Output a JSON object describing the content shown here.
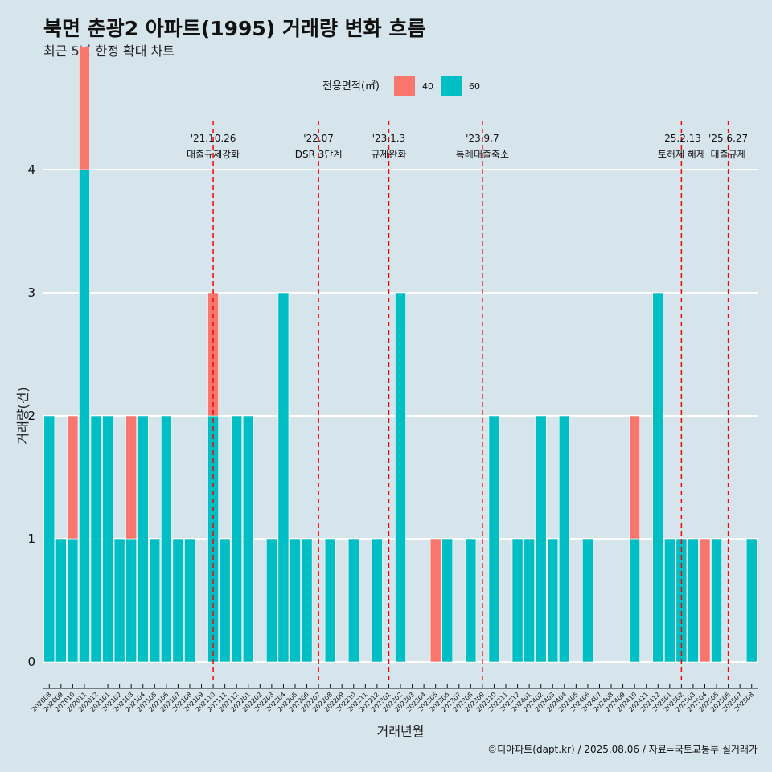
{
  "chart_data": {
    "type": "bar",
    "title": "북면 춘광2 아파트(1995) 거래량 변화 흐름",
    "subtitle": "최근 5년 한정 확대 차트",
    "xlabel": "거래년월",
    "ylabel": "거래량(건)",
    "ylim": [
      0,
      4
    ],
    "yticks": [
      "0",
      "1",
      "2",
      "3",
      "4"
    ],
    "grid": true,
    "legend": {
      "title": "전용면적(㎡)",
      "position": "top",
      "entries": [
        {
          "label": "40",
          "color": "#f8766d"
        },
        {
          "label": "60",
          "color": "#00bfc4"
        }
      ]
    },
    "categories": [
      "202008",
      "202009",
      "202010",
      "202011",
      "202012",
      "202101",
      "202102",
      "202103",
      "202104",
      "202105",
      "202106",
      "202107",
      "202108",
      "202109",
      "202110",
      "202111",
      "202112",
      "202201",
      "202202",
      "202203",
      "202204",
      "202205",
      "202206",
      "202207",
      "202208",
      "202209",
      "202210",
      "202211",
      "202212",
      "202301",
      "202302",
      "202303",
      "202304",
      "202305",
      "202306",
      "202307",
      "202308",
      "202309",
      "202310",
      "202311",
      "202312",
      "202401",
      "202402",
      "202403",
      "202404",
      "202405",
      "202406",
      "202407",
      "202408",
      "202409",
      "202410",
      "202411",
      "202412",
      "202501",
      "202502",
      "202503",
      "202504",
      "202505",
      "202506",
      "202507",
      "202508"
    ],
    "series": [
      {
        "name": "40",
        "color": "#f8766d",
        "values": [
          0,
          0,
          1,
          1,
          0,
          0,
          0,
          1,
          0,
          0,
          0,
          0,
          0,
          0,
          1,
          0,
          0,
          0,
          0,
          0,
          0,
          0,
          0,
          0,
          0,
          0,
          0,
          0,
          0,
          0,
          0,
          0,
          0,
          1,
          0,
          0,
          0,
          0,
          0,
          0,
          0,
          0,
          0,
          0,
          0,
          0,
          0,
          0,
          0,
          0,
          1,
          0,
          0,
          0,
          0,
          0,
          1,
          0,
          0,
          0,
          0
        ]
      },
      {
        "name": "60",
        "color": "#00bfc4",
        "values": [
          2,
          1,
          1,
          4,
          2,
          2,
          1,
          1,
          2,
          1,
          2,
          1,
          1,
          0,
          2,
          1,
          2,
          2,
          0,
          1,
          3,
          1,
          1,
          0,
          1,
          0,
          1,
          0,
          1,
          0,
          3,
          0,
          0,
          0,
          1,
          0,
          1,
          0,
          2,
          0,
          1,
          1,
          2,
          1,
          2,
          0,
          1,
          0,
          0,
          0,
          1,
          0,
          3,
          1,
          1,
          1,
          0,
          1,
          0,
          0,
          1
        ]
      }
    ],
    "events": [
      {
        "x": "202110",
        "date": "'21.10.26",
        "label": "대출규제강화"
      },
      {
        "x": "202207",
        "date": "'22.07",
        "label": "DSR 3단계"
      },
      {
        "x": "202301",
        "date": "'23.1.3",
        "label": "규제완화"
      },
      {
        "x": "202309",
        "date": "'23.9.7",
        "label": "특례대출축소"
      },
      {
        "x": "202502",
        "date": "'25.2.13",
        "label": "토허제 해제"
      },
      {
        "x": "202506",
        "date": "'25.6.27",
        "label": "대출규제"
      }
    ],
    "caption": "©디아파트(dapt.kr) / 2025.08.06 / 자료=국토교통부 실거래가"
  }
}
